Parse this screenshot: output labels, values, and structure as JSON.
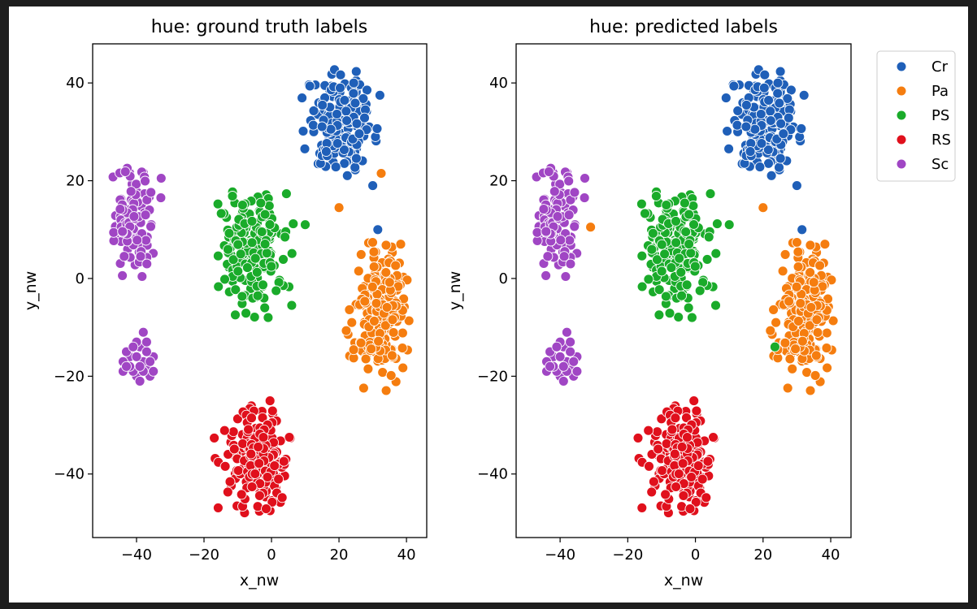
{
  "chart_data": [
    {
      "type": "scatter",
      "title": "hue: ground truth labels",
      "xlabel": "x_nw",
      "ylabel": "y_nw",
      "xlim": [
        -53,
        46
      ],
      "ylim": [
        -53,
        48
      ],
      "xticks": [
        -40,
        -20,
        0,
        20,
        40
      ],
      "yticks": [
        -40,
        -20,
        0,
        20,
        40
      ],
      "xtick_labels": [
        "−40",
        "−20",
        "0",
        "20",
        "40"
      ],
      "ytick_labels": [
        "−40",
        "−20",
        "0",
        "20",
        "40"
      ],
      "grid": false,
      "legend": false,
      "series": [
        {
          "name": "Cr",
          "color": "#1f5fb8",
          "cluster": {
            "cx": 21,
            "cy": 32,
            "sx": 5.0,
            "sy": 5.0,
            "xmin": 9,
            "xmax": 33,
            "ymin": 21,
            "ymax": 43,
            "n": 210
          },
          "points": [
            [
              30,
              19
            ],
            [
              31.5,
              10
            ]
          ]
        },
        {
          "name": "Pa",
          "color": "#f57d0f",
          "cluster": {
            "cx": 32,
            "cy": -7,
            "sx": 3.6,
            "sy": 7.2,
            "xmin": 22,
            "xmax": 41,
            "ymin": -23,
            "ymax": 8,
            "n": 230
          },
          "points": [
            [
              20,
              14.5
            ],
            [
              32.5,
              21.5
            ]
          ]
        },
        {
          "name": "PS",
          "color": "#1aab2a",
          "cluster": {
            "cx": -6,
            "cy": 6,
            "sx": 5.0,
            "sy": 6.0,
            "xmin": -17,
            "xmax": 7,
            "ymin": -8,
            "ymax": 18,
            "n": 190
          },
          "points": [
            [
              10,
              11
            ],
            [
              6,
              -5.5
            ],
            [
              -1,
              -8
            ],
            [
              -2,
              -6
            ]
          ]
        },
        {
          "name": "RS",
          "color": "#e0101c",
          "cluster": {
            "cx": -4,
            "cy": -37,
            "sx": 4.5,
            "sy": 5.0,
            "xmin": -18,
            "xmax": 6,
            "ymin": -48,
            "ymax": -25,
            "n": 220
          },
          "points": []
        },
        {
          "name": "Sc",
          "color": "#a046c4",
          "cluster": {
            "cx": -41,
            "cy": 11,
            "sx": 3.5,
            "sy": 6.0,
            "xmin": -49,
            "xmax": -31,
            "ymin": 0,
            "ymax": 23,
            "n": 110
          },
          "points": [
            [
              -38,
              -11
            ],
            [
              -42,
              -16
            ],
            [
              -37,
              -18
            ],
            [
              -40,
              -20
            ],
            [
              -44,
              -17
            ],
            [
              -35,
              -16
            ],
            [
              -39,
              -14
            ],
            [
              -41,
              -19
            ],
            [
              -36,
              -20
            ],
            [
              -43,
              -15
            ],
            [
              -38,
              -17
            ],
            [
              -40,
              -13
            ],
            [
              -37,
              -15
            ],
            [
              -42,
              -18
            ],
            [
              -39,
              -21
            ],
            [
              -36,
              -17
            ],
            [
              -41,
              -14
            ],
            [
              -44,
              -19
            ],
            [
              -38,
              -19
            ],
            [
              -40,
              -16
            ],
            [
              -37,
              -13
            ],
            [
              -43,
              -18
            ],
            [
              -39,
              -18
            ],
            [
              -35,
              -19
            ]
          ]
        }
      ]
    },
    {
      "type": "scatter",
      "title": "hue: predicted labels",
      "xlabel": "x_nw",
      "ylabel": "y_nw",
      "xlim": [
        -53,
        46
      ],
      "ylim": [
        -53,
        48
      ],
      "xticks": [
        -40,
        -20,
        0,
        20,
        40
      ],
      "yticks": [
        -40,
        -20,
        0,
        20,
        40
      ],
      "xtick_labels": [
        "−40",
        "−20",
        "0",
        "20",
        "40"
      ],
      "ytick_labels": [
        "−40",
        "−20",
        "0",
        "20",
        "40"
      ],
      "grid": false,
      "legend": true,
      "legend_position": "outside upper right",
      "series": [
        {
          "name": "Cr",
          "color": "#1f5fb8",
          "cluster": {
            "cx": 21,
            "cy": 32,
            "sx": 5.0,
            "sy": 5.0,
            "xmin": 9,
            "xmax": 33,
            "ymin": 21,
            "ymax": 43,
            "n": 210
          },
          "points": [
            [
              30,
              19
            ],
            [
              31.5,
              10
            ]
          ]
        },
        {
          "name": "Pa",
          "color": "#f57d0f",
          "cluster": {
            "cx": 32,
            "cy": -7,
            "sx": 3.6,
            "sy": 7.2,
            "xmin": 22,
            "xmax": 41,
            "ymin": -23,
            "ymax": 8,
            "n": 230
          },
          "points": [
            [
              20,
              14.5
            ],
            [
              -31,
              10.5
            ]
          ]
        },
        {
          "name": "PS",
          "color": "#1aab2a",
          "cluster": {
            "cx": -6,
            "cy": 6,
            "sx": 5.0,
            "sy": 6.0,
            "xmin": -17,
            "xmax": 7,
            "ymin": -8,
            "ymax": 18,
            "n": 190
          },
          "points": [
            [
              10,
              11
            ],
            [
              6,
              -5.5
            ],
            [
              -1,
              -8
            ],
            [
              -2,
              -6
            ],
            [
              23.5,
              -14
            ]
          ]
        },
        {
          "name": "RS",
          "color": "#e0101c",
          "cluster": {
            "cx": -4,
            "cy": -37,
            "sx": 4.5,
            "sy": 5.0,
            "xmin": -18,
            "xmax": 6,
            "ymin": -48,
            "ymax": -25,
            "n": 220
          },
          "points": []
        },
        {
          "name": "Sc",
          "color": "#a046c4",
          "cluster": {
            "cx": -41,
            "cy": 11,
            "sx": 3.5,
            "sy": 6.0,
            "xmin": -49,
            "xmax": -31,
            "ymin": 0,
            "ymax": 23,
            "n": 110
          },
          "points": [
            [
              -38,
              -11
            ],
            [
              -42,
              -16
            ],
            [
              -37,
              -18
            ],
            [
              -40,
              -20
            ],
            [
              -44,
              -17
            ],
            [
              -35,
              -16
            ],
            [
              -39,
              -14
            ],
            [
              -41,
              -19
            ],
            [
              -36,
              -20
            ],
            [
              -43,
              -15
            ],
            [
              -38,
              -17
            ],
            [
              -40,
              -13
            ],
            [
              -37,
              -15
            ],
            [
              -42,
              -18
            ],
            [
              -39,
              -21
            ],
            [
              -36,
              -17
            ],
            [
              -41,
              -14
            ],
            [
              -44,
              -19
            ],
            [
              -38,
              -19
            ],
            [
              -40,
              -16
            ],
            [
              -37,
              -13
            ],
            [
              -43,
              -18
            ],
            [
              -39,
              -18
            ],
            [
              -35,
              -19
            ]
          ]
        }
      ]
    }
  ],
  "legend": {
    "entries": [
      {
        "label": "Cr",
        "color": "#1f5fb8"
      },
      {
        "label": "Pa",
        "color": "#f57d0f"
      },
      {
        "label": "PS",
        "color": "#1aab2a"
      },
      {
        "label": "RS",
        "color": "#e0101c"
      },
      {
        "label": "Sc",
        "color": "#a046c4"
      }
    ]
  }
}
